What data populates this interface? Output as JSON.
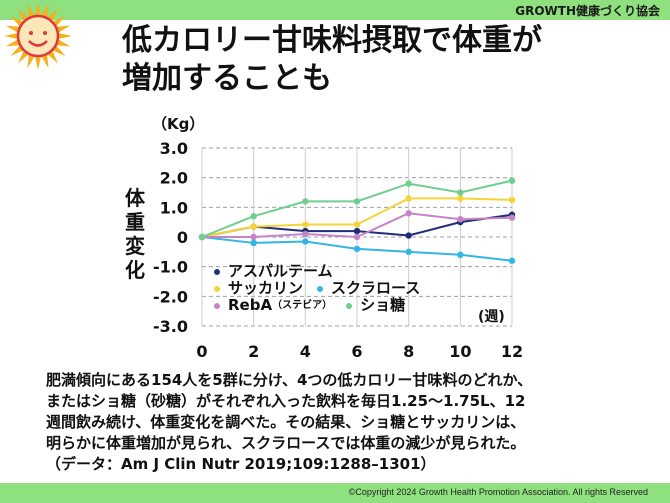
{
  "header": {
    "org_name": "GROWTH健康づくり協会",
    "title_line1": "低カロリー甘味料摂取で体重が",
    "title_line2": "増加することも"
  },
  "colors": {
    "header_bar": "#8fe07e",
    "logo_sun": "#f3b21b",
    "logo_face": "#e0373d"
  },
  "logo": {
    "icon": "sun-face-icon"
  },
  "chart_data": {
    "type": "line",
    "unit_y": "（Kg）",
    "unit_x": "(週)",
    "ylabel": [
      "体",
      "重",
      "変",
      "化"
    ],
    "x": [
      0,
      2,
      4,
      6,
      8,
      10,
      12
    ],
    "x_tick_labels": [
      "0",
      "2",
      "4",
      "6",
      "8",
      "10",
      "12"
    ],
    "y_tick_labels": [
      "3.0",
      "2.0",
      "1.0",
      "0",
      "-1.0",
      "-2.0",
      "-3.0"
    ],
    "y_ticks": [
      3,
      2,
      1,
      0,
      -1,
      -2,
      -3
    ],
    "ylim": [
      -3,
      3
    ],
    "grid": "horizontal dashed",
    "legend_position": "bottom-left",
    "series": [
      {
        "name": "アスパルテーム",
        "name_small": "",
        "color": "#1f2e7a",
        "values": [
          0,
          0.35,
          0.2,
          0.2,
          0.05,
          0.5,
          0.75
        ]
      },
      {
        "name": "サッカリン",
        "name_small": "",
        "color": "#f5d33a",
        "values": [
          0,
          0.35,
          0.42,
          0.42,
          1.3,
          1.3,
          1.25
        ]
      },
      {
        "name": "スクラロース",
        "name_small": "",
        "color": "#35b4e6",
        "values": [
          0,
          -0.2,
          -0.15,
          -0.4,
          -0.5,
          -0.6,
          -0.8
        ]
      },
      {
        "name": "RebA",
        "name_small": "（ステビア）",
        "color": "#c584c8",
        "values": [
          0,
          0.0,
          0.1,
          0.0,
          0.8,
          0.6,
          0.65
        ]
      },
      {
        "name": "ショ糖",
        "name_small": "",
        "color": "#6fcf8f",
        "values": [
          0,
          0.7,
          1.2,
          1.2,
          1.8,
          1.5,
          1.9
        ]
      }
    ]
  },
  "description": {
    "lines": [
      "肥満傾向にある154人を5群に分け、4つの低カロリー甘味料のどれか、",
      "またはショ糖（砂糖）がそれぞれ入った飲料を毎日1.25～1.75L、12",
      "週間飲み続け、体重変化を調べた。その結果、ショ糖とサッカリンは、",
      "明らかに体重増加が見られ、スクラロースでは体重の減少が見られた。",
      "（データ：Am J Clin Nutr 2019;109:1288–1301）"
    ]
  },
  "footer": {
    "copyright": "©Copyright 2024 Growth Health Promotion Association. All rights Reserved"
  }
}
